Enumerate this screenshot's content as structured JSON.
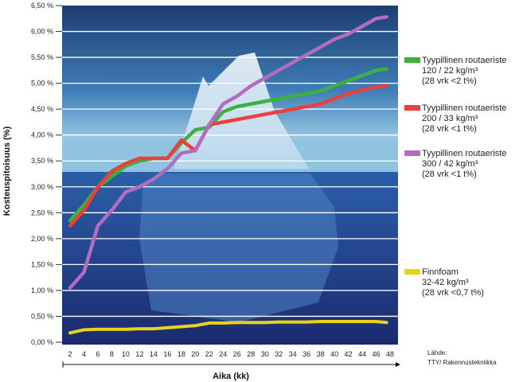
{
  "chart_data": {
    "type": "line",
    "title": "",
    "xlabel": "Aika (kk)",
    "ylabel": "Kosteuspitoisuus (%)",
    "xlim": [
      2,
      48
    ],
    "ylim": [
      0,
      6.5
    ],
    "x_ticks": [
      2,
      4,
      6,
      8,
      10,
      12,
      14,
      16,
      18,
      20,
      22,
      24,
      26,
      28,
      30,
      32,
      34,
      36,
      38,
      40,
      42,
      44,
      46,
      48
    ],
    "y_ticks": [
      "0,00 %",
      "0,50 %",
      "1,00 %",
      "1,50 %",
      "2,00 %",
      "2,50 %",
      "3,00 %",
      "3,50 %",
      "4,00 %",
      "4,50 %",
      "5,00 %",
      "5,50 %",
      "6,00 %",
      "6,50 %"
    ],
    "grid": true,
    "legend_placement": "right",
    "x": [
      2,
      4,
      6,
      8,
      10,
      12,
      14,
      16,
      18,
      20,
      22,
      24,
      26,
      28,
      30,
      32,
      34,
      36,
      38,
      40,
      42,
      44,
      46,
      47.5
    ],
    "series": [
      {
        "name": "Tyypillinen routaeriste",
        "lines": [
          "120 / 22 kg/m³",
          "(28 vrk <2 t%)"
        ],
        "color": "#3cb043",
        "values": [
          2.35,
          2.65,
          3.0,
          3.2,
          3.4,
          3.5,
          3.55,
          3.55,
          3.85,
          4.1,
          4.15,
          4.45,
          4.55,
          4.6,
          4.65,
          4.7,
          4.75,
          4.8,
          4.85,
          4.95,
          5.05,
          5.15,
          5.25,
          5.28
        ]
      },
      {
        "name": "Tyypillinen routaeriste",
        "lines": [
          "200 / 33 kg/m³",
          "(28 vrk <1 t%)"
        ],
        "color": "#e8403a",
        "values": [
          2.25,
          2.55,
          3.0,
          3.3,
          3.45,
          3.55,
          3.55,
          3.55,
          3.9,
          3.7,
          4.2,
          4.25,
          4.3,
          4.35,
          4.4,
          4.45,
          4.5,
          4.55,
          4.6,
          4.7,
          4.8,
          4.87,
          4.93,
          4.95
        ]
      },
      {
        "name": "Tyypillinen routaeriste",
        "lines": [
          "300 / 42 kg/m³",
          "(28 vrk <1 t%)"
        ],
        "color": "#b36cc0",
        "values": [
          1.05,
          1.35,
          2.25,
          2.55,
          2.9,
          3.0,
          3.15,
          3.35,
          3.65,
          3.7,
          4.2,
          4.6,
          4.75,
          4.95,
          5.1,
          5.25,
          5.4,
          5.55,
          5.7,
          5.85,
          5.95,
          6.1,
          6.25,
          6.28
        ]
      },
      {
        "name": "Finnfoam",
        "lines": [
          "32-42 kg/m³",
          "(28 vrk <0,7 t%)"
        ],
        "color": "#e8d21a",
        "values": [
          0.18,
          0.24,
          0.25,
          0.25,
          0.25,
          0.26,
          0.26,
          0.28,
          0.3,
          0.32,
          0.37,
          0.37,
          0.38,
          0.38,
          0.38,
          0.39,
          0.39,
          0.39,
          0.4,
          0.4,
          0.4,
          0.4,
          0.4,
          0.38
        ]
      }
    ],
    "source": [
      "Lähde:",
      "TTY/ Rakennustekniikka"
    ]
  }
}
